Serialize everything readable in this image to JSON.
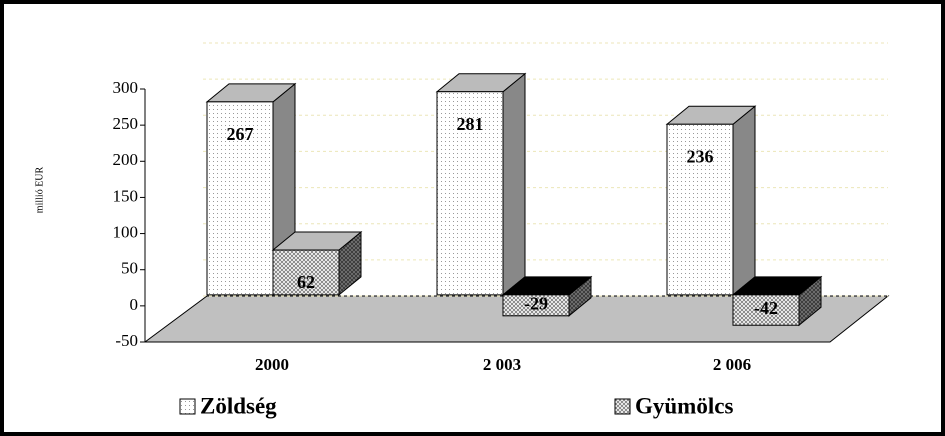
{
  "chart_data": {
    "type": "bar",
    "y_label": "millió EUR",
    "categories": [
      "2000",
      "2 003",
      "2 006"
    ],
    "series": [
      {
        "name": "Zöldség",
        "color": "#ffffff",
        "values": [
          267,
          281,
          236
        ]
      },
      {
        "name": "Gyümölcs",
        "color": "#ffffff",
        "values": [
          62,
          -29,
          -42
        ]
      }
    ],
    "ylim": [
      -50,
      300
    ],
    "yticks": [
      -50,
      0,
      50,
      100,
      150,
      200,
      250,
      300
    ],
    "grid": true
  }
}
